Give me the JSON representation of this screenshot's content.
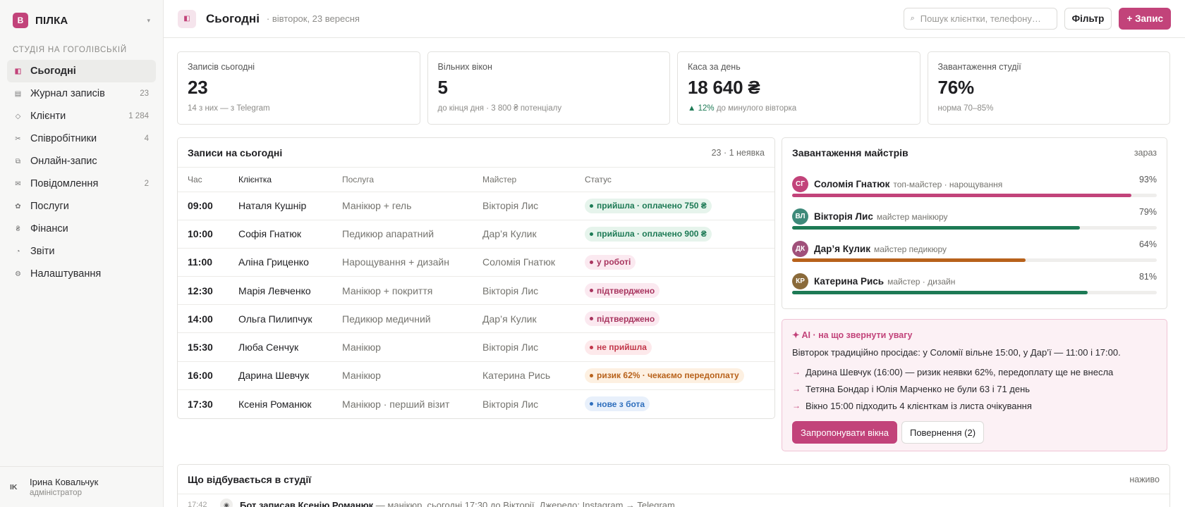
{
  "brand": {
    "mark": "B",
    "name": "ПІЛКА"
  },
  "sidebar": {
    "section": "СТУДІЯ НА ГОГОЛІВСЬКІЙ",
    "items": [
      {
        "icon": "◧",
        "label": "Сьогодні",
        "count": ""
      },
      {
        "icon": "▤",
        "label": "Журнал записів",
        "count": "23"
      },
      {
        "icon": "◇",
        "label": "Клієнти",
        "count": "1 284"
      },
      {
        "icon": "✂",
        "label": "Співробітники",
        "count": "4"
      },
      {
        "icon": "⧉",
        "label": "Онлайн-запис",
        "count": ""
      },
      {
        "icon": "✉",
        "label": "Повідомлення",
        "count": "2"
      },
      {
        "icon": "✿",
        "label": "Послуги",
        "count": ""
      },
      {
        "icon": "₴",
        "label": "Фінанси",
        "count": ""
      },
      {
        "icon": "◔",
        "label": "Звіти",
        "count": ""
      },
      {
        "icon": "⚙",
        "label": "Налаштування",
        "count": ""
      }
    ],
    "user": {
      "initials": "IK",
      "name": "Ірина Ковальчук",
      "role": "адміністратор"
    }
  },
  "header": {
    "title": "Сьогодні",
    "date": "· вівторок, 23 вересня",
    "search_placeholder": "Пошук клієнтки, телефону…",
    "filter_label": "Фільтр",
    "add_label": "+ Запис"
  },
  "stats": [
    {
      "label": "Записів сьогодні",
      "value": "23",
      "note": "14 з них — з Telegram"
    },
    {
      "label": "Вільних вікон",
      "value": "5",
      "note": "до кінця дня · 3 800 ₴ потенціалу"
    },
    {
      "label": "Каса за день",
      "value": "18 640 ₴",
      "trend": "▲ 12%",
      "note": "до минулого вівторка"
    },
    {
      "label": "Завантаження студії",
      "value": "76%",
      "note": "норма 70–85%"
    }
  ],
  "appointments": {
    "title": "Записи на сьогодні",
    "meta": "23 · 1 неявка",
    "columns": [
      "Час",
      "Клієнтка",
      "Послуга",
      "Майстер",
      "Статус"
    ],
    "rows": [
      {
        "time": "09:00",
        "client": "Наталя Кушнір",
        "service": "Манікюр + гель",
        "master": "Вікторія Лис",
        "status": "прийшла · оплачено 750 ₴",
        "tone": "green"
      },
      {
        "time": "10:00",
        "client": "Софія Гнатюк",
        "service": "Педикюр апаратний",
        "master": "Дар’я Кулик",
        "status": "прийшла · оплачено 900 ₴",
        "tone": "green"
      },
      {
        "time": "11:00",
        "client": "Аліна Гриценко",
        "service": "Нарощування + дизайн",
        "master": "Соломія Гнатюк",
        "status": "у роботі",
        "tone": "pink"
      },
      {
        "time": "12:30",
        "client": "Марія Левченко",
        "service": "Манікюр + покриття",
        "master": "Вікторія Лис",
        "status": "підтверджено",
        "tone": "pink"
      },
      {
        "time": "14:00",
        "client": "Ольга Пилипчук",
        "service": "Педикюр медичний",
        "master": "Дар’я Кулик",
        "status": "підтверджено",
        "tone": "pink"
      },
      {
        "time": "15:30",
        "client": "Люба Сенчук",
        "service": "Манікюр",
        "master": "Вікторія Лис",
        "status": "не прийшла",
        "tone": "red"
      },
      {
        "time": "16:00",
        "client": "Дарина Шевчук",
        "service": "Манікюр",
        "master": "Катерина Рись",
        "status": "ризик 62% · чекаємо передоплату",
        "tone": "amber"
      },
      {
        "time": "17:30",
        "client": "Ксенія Романюк",
        "service": "Манікюр · перший візит",
        "master": "Вікторія Лис",
        "status": "нове з бота",
        "tone": "blue"
      }
    ]
  },
  "masters": {
    "title": "Завантаження майстрів",
    "meta": "зараз",
    "items": [
      {
        "initials": "СГ",
        "name": "Соломія Гнатюк",
        "role": "топ-майстер · нарощування",
        "pct_label": "93%",
        "load": 0.93,
        "color": "#c2437a"
      },
      {
        "initials": "ВЛ",
        "name": "Вікторія Лис",
        "role": "майстер манікюру",
        "pct_label": "79%",
        "load": 0.79,
        "color": "#1d7a55"
      },
      {
        "initials": "ДК",
        "name": "Дар’я Кулик",
        "role": "майстер педикюру",
        "pct_label": "64%",
        "load": 0.64,
        "color": "#b8621b"
      },
      {
        "initials": "КР",
        "name": "Катерина Рись",
        "role": "майстер · дизайн",
        "pct_label": "81%",
        "load": 0.81,
        "color": "#1d7a55"
      }
    ]
  },
  "ai": {
    "title": "✦ AI · на що звернути увагу",
    "subtitle": "Вівторок традиційно просідає: у Соломії вільне 15:00, у Дар’ї — 11:00 і 17:00.",
    "items": [
      "Дарина Шевчук (16:00) — ризик неявки 62%, передоплату ще не внесла",
      "Тетяна Бондар і Юлія Марченко не були 63 і 71 день",
      "Вікно 15:00 підходить 4 клієнткам із листа очікування"
    ],
    "primary_btn": "Запропонувати вікна",
    "secondary_btn": "Повернення (2)"
  },
  "activity": {
    "title": "Що відбувається в студії",
    "meta": "наживо",
    "rows": [
      {
        "time": "17:42",
        "strong": "Бот записав Ксенію Романюк",
        "text": " — манікюр, сьогодні 17:30 до Вікторії. Джерело: Instagram → Telegram"
      }
    ]
  },
  "colors": {
    "accent": "#c2437a",
    "green": "#1d7a55",
    "amber": "#b8621b",
    "blue": "#2f6fbd",
    "red": "#c2374a"
  }
}
